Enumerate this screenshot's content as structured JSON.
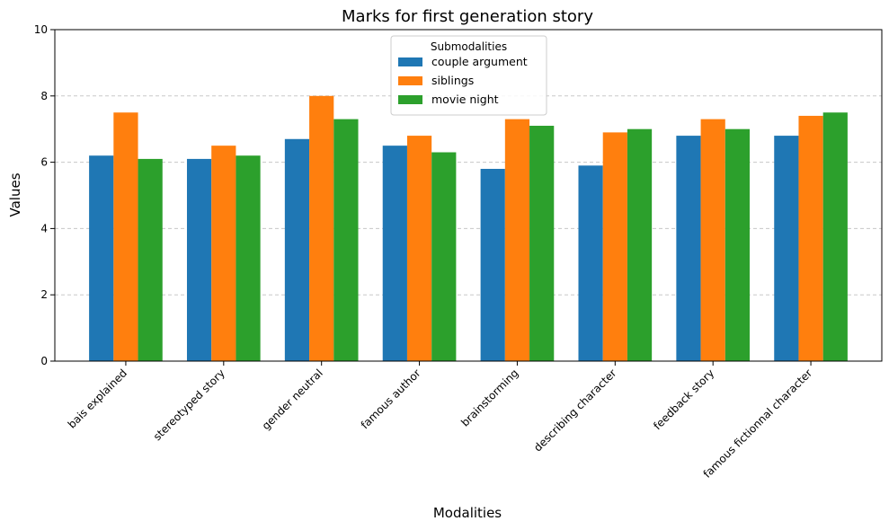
{
  "chart_data": {
    "type": "bar",
    "title": "Marks for first generation story",
    "xlabel": "Modalities",
    "ylabel": "Values",
    "ylim": [
      0,
      10
    ],
    "yticks": [
      0,
      2,
      4,
      6,
      8,
      10
    ],
    "grid": "y-dashed",
    "legend": {
      "title": "Submodalities",
      "placement": "top-center"
    },
    "categories": [
      "bais explained",
      "stereotyped story",
      "gender neutral",
      "famous author",
      "brainstorming",
      "describing character",
      "feedback story",
      "famous fictionnal character"
    ],
    "series": [
      {
        "name": "couple argument",
        "color": "#1f77b4",
        "values": [
          6.2,
          6.1,
          6.7,
          6.5,
          5.8,
          5.9,
          6.8,
          6.8
        ]
      },
      {
        "name": "siblings",
        "color": "#ff7f0e",
        "values": [
          7.5,
          6.5,
          8.0,
          6.8,
          7.3,
          6.9,
          7.3,
          7.4
        ]
      },
      {
        "name": "movie night",
        "color": "#2ca02c",
        "values": [
          6.1,
          6.2,
          7.3,
          6.3,
          7.1,
          7.0,
          7.0,
          7.5
        ]
      }
    ]
  }
}
